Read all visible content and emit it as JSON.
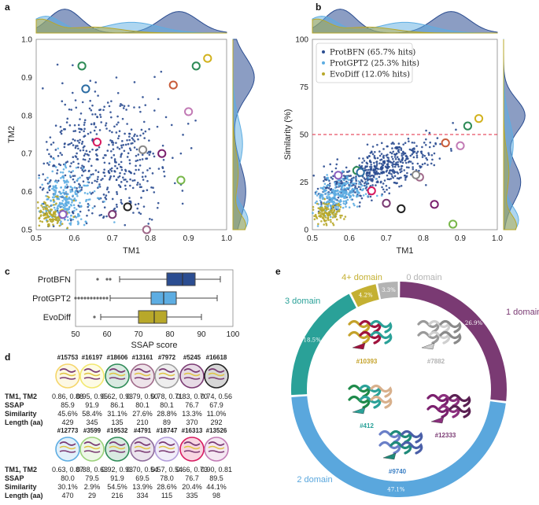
{
  "colors": {
    "ProtBFN": "#2b4d91",
    "ProtGPT2": "#5dade2",
    "EvoDiff": "#b8a82a",
    "domain_1": "#7a3a73",
    "domain_2": "#5aa7dd",
    "domain_3": "#2aa198",
    "domain_4plus": "#c4b032",
    "domain_0": "#b3b3b3",
    "threshold_line": "#e0243c"
  },
  "panels": {
    "a": "a",
    "b": "b",
    "c": "c",
    "d": "d",
    "e": "e"
  },
  "chart_data": [
    {
      "id": "a",
      "type": "scatter",
      "title": "",
      "xlabel": "TM1",
      "ylabel": "TM2",
      "xlim": [
        0.5,
        1.0
      ],
      "ylim": [
        0.5,
        1.0
      ],
      "xticks": [
        "0.5",
        "0.6",
        "0.7",
        "0.8",
        "0.9",
        "1.0"
      ],
      "yticks": [
        "0.5",
        "0.6",
        "0.7",
        "0.8",
        "0.9",
        "1.0"
      ],
      "series": [
        "ProtBFN",
        "ProtGPT2",
        "EvoDiff"
      ],
      "highlighted_points": [
        {
          "id": "#15753",
          "x": 0.86,
          "y": 0.88
        },
        {
          "id": "#16197",
          "x": 0.95,
          "y": 0.95
        },
        {
          "id": "#18606",
          "x": 0.62,
          "y": 0.93
        },
        {
          "id": "#13161",
          "x": 0.79,
          "y": 0.5
        },
        {
          "id": "#7972",
          "x": 0.78,
          "y": 0.71
        },
        {
          "id": "#5245",
          "x": 0.83,
          "y": 0.7
        },
        {
          "id": "#16618",
          "x": 0.74,
          "y": 0.56
        },
        {
          "id": "#12773",
          "x": 0.63,
          "y": 0.87
        },
        {
          "id": "#3599",
          "x": 0.88,
          "y": 0.63
        },
        {
          "id": "#19532",
          "x": 0.92,
          "y": 0.93
        },
        {
          "id": "#4791",
          "x": 0.7,
          "y": 0.54
        },
        {
          "id": "#18747",
          "x": 0.57,
          "y": 0.54
        },
        {
          "id": "#16313",
          "x": 0.66,
          "y": 0.73
        },
        {
          "id": "#13526",
          "x": 0.9,
          "y": 0.81
        }
      ]
    },
    {
      "id": "b",
      "type": "scatter",
      "title": "",
      "xlabel": "TM1",
      "ylabel": "Similarity (%)",
      "xlim": [
        0.5,
        1.0
      ],
      "ylim": [
        0,
        100
      ],
      "xticks": [
        "0.5",
        "0.6",
        "0.7",
        "0.8",
        "0.9",
        "1.0"
      ],
      "yticks": [
        "0",
        "25",
        "50",
        "75",
        "100"
      ],
      "threshold": 50,
      "legend": [
        {
          "name": "ProtBFN",
          "label": "ProtBFN (65.7% hits)"
        },
        {
          "name": "ProtGPT2",
          "label": "ProtGPT2 (25.3% hits)"
        },
        {
          "name": "EvoDiff",
          "label": "EvoDiff (12.0% hits)"
        }
      ],
      "highlighted_points": [
        {
          "id": "#15753",
          "x": 0.86,
          "y": 45.6
        },
        {
          "id": "#16197",
          "x": 0.95,
          "y": 58.4
        },
        {
          "id": "#18606",
          "x": 0.62,
          "y": 31.1
        },
        {
          "id": "#13161",
          "x": 0.79,
          "y": 27.6
        },
        {
          "id": "#7972",
          "x": 0.78,
          "y": 28.8
        },
        {
          "id": "#5245",
          "x": 0.83,
          "y": 13.3
        },
        {
          "id": "#16618",
          "x": 0.74,
          "y": 11.0
        },
        {
          "id": "#12773",
          "x": 0.63,
          "y": 30.1
        },
        {
          "id": "#3599",
          "x": 0.88,
          "y": 2.9
        },
        {
          "id": "#19532",
          "x": 0.92,
          "y": 54.5
        },
        {
          "id": "#4791",
          "x": 0.7,
          "y": 13.9
        },
        {
          "id": "#18747",
          "x": 0.57,
          "y": 28.6
        },
        {
          "id": "#16313",
          "x": 0.66,
          "y": 20.4
        },
        {
          "id": "#13526",
          "x": 0.9,
          "y": 44.1
        }
      ]
    },
    {
      "id": "c",
      "type": "boxplot",
      "xlabel": "SSAP score",
      "xlim": [
        50,
        100
      ],
      "xticks": [
        "50",
        "60",
        "70",
        "80",
        "90",
        "100"
      ],
      "categories": [
        "ProtBFN",
        "ProtGPT2",
        "EvoDiff"
      ],
      "boxes": [
        {
          "name": "ProtBFN",
          "whisker_low": 64,
          "q1": 79,
          "median": 84,
          "q3": 88,
          "whisker_high": 96,
          "outliers": [
            57,
            60,
            61
          ]
        },
        {
          "name": "ProtGPT2",
          "whisker_low": 61,
          "q1": 74,
          "median": 78,
          "q3": 82,
          "whisker_high": 95,
          "outliers": [
            50,
            51,
            52,
            53,
            54,
            55,
            56,
            57,
            58,
            59,
            60
          ]
        },
        {
          "name": "EvoDiff",
          "whisker_low": 58,
          "q1": 70,
          "median": 75,
          "q3": 79,
          "whisker_high": 90,
          "outliers": [
            56
          ]
        }
      ]
    },
    {
      "id": "e",
      "type": "donut",
      "slices": [
        {
          "label": "1 domain",
          "value": 26.9,
          "pct": "26.9%"
        },
        {
          "label": "2 domain",
          "value": 47.1,
          "pct": "47.1%"
        },
        {
          "label": "3 domain",
          "value": 18.5,
          "pct": "18.5%"
        },
        {
          "label": "4+ domain",
          "value": 4.2,
          "pct": "4.2%"
        },
        {
          "label": "0 domain",
          "value": 3.3,
          "pct": "3.3%"
        }
      ],
      "structures": [
        "#10393",
        "#7882",
        "#412",
        "#12333",
        "#9740"
      ]
    }
  ],
  "table_d": {
    "row_labels": [
      "TM1, TM2",
      "SSAP",
      "Similarity",
      "Length (aa)"
    ],
    "top": [
      {
        "id": "#15753",
        "tm": "0.86, 0.88",
        "ssap": "85.9",
        "sim": "45.6%",
        "len": "429"
      },
      {
        "id": "#16197",
        "tm": "0.95, 0.95",
        "ssap": "91.9",
        "sim": "58.4%",
        "len": "345"
      },
      {
        "id": "#18606",
        "tm": "0.62, 0.93",
        "ssap": "86.1",
        "sim": "31.1%",
        "len": "135"
      },
      {
        "id": "#13161",
        "tm": "0.79, 0.50",
        "ssap": "80.1",
        "sim": "27.6%",
        "len": "210"
      },
      {
        "id": "#7972",
        "tm": "0.78, 0.71",
        "ssap": "80.1",
        "sim": "28.8%",
        "len": "89"
      },
      {
        "id": "#5245",
        "tm": "0.83, 0.70",
        "ssap": "76.7",
        "sim": "13.3%",
        "len": "370"
      },
      {
        "id": "#16618",
        "tm": "0.74, 0.56",
        "ssap": "67.9",
        "sim": "11.0%",
        "len": "292"
      }
    ],
    "bottom": [
      {
        "id": "#12773",
        "tm": "0.63, 0.87",
        "ssap": "80.0",
        "sim": "30.1%",
        "len": "470"
      },
      {
        "id": "#3599",
        "tm": "0.88, 0.63",
        "ssap": "79.5",
        "sim": "2.9%",
        "len": "29"
      },
      {
        "id": "#19532",
        "tm": "0.92, 0.93",
        "ssap": "91.9",
        "sim": "54.5%",
        "len": "216"
      },
      {
        "id": "#4791",
        "tm": "0.70, 0.54",
        "ssap": "69.5",
        "sim": "13.9%",
        "len": "334"
      },
      {
        "id": "#18747",
        "tm": "0.57, 0.54",
        "ssap": "78.0",
        "sim": "28.6%",
        "len": "115"
      },
      {
        "id": "#16313",
        "tm": "0.66, 0.73",
        "ssap": "76.7",
        "sim": "20.4%",
        "len": "335"
      },
      {
        "id": "#13526",
        "tm": "0.90, 0.81",
        "ssap": "89.5",
        "sim": "44.1%",
        "len": "98"
      }
    ]
  }
}
